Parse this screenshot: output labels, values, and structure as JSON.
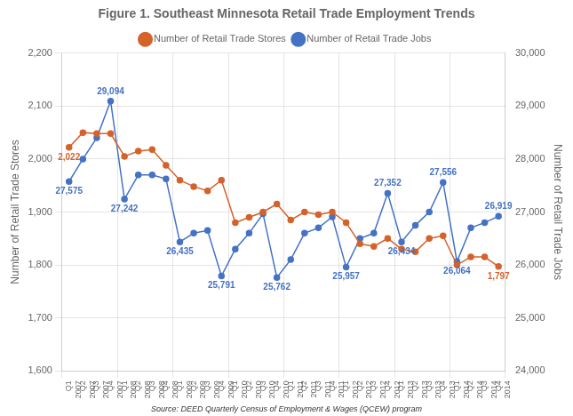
{
  "chart_data": {
    "type": "line",
    "title": "Figure 1. Southeast Minnesota Retail Trade Employment Trends",
    "y_label": "Number of Retail Trade Stores",
    "y2_label": "Number of Retail Trade Jobs",
    "categories": [
      "Q1\n2007",
      "Q2\n2007",
      "Q3\n2007",
      "Q4\n2007",
      "Q1\n2008",
      "Q2\n2008",
      "Q3\n2008",
      "Q4\n2008",
      "Q1\n2009",
      "Q2\n2009",
      "Q3\n2009",
      "Q4\n2009",
      "Q1\n2010",
      "Q2\n2010",
      "Q3\n2010",
      "Q4\n2010",
      "Q1\n2011",
      "Q2\n2011",
      "Q3\n2011",
      "Q4\n2011",
      "Q1\n2012",
      "Q2\n2012",
      "Q3\n2012",
      "Q4\n2012",
      "Q1\n2013",
      "Q2\n2013",
      "Q3\n2013",
      "Q4\n2013",
      "Q1\n2014",
      "Q2\n2014",
      "Q3\n2014",
      "Q4\n2014"
    ],
    "series": [
      {
        "name": "Number of Retail Trade Stores",
        "color": "#D4622A",
        "marker": "circle",
        "line_style": "solid",
        "values": [
          2022,
          2050,
          2048,
          2048,
          2005,
          2015,
          2018,
          1988,
          1960,
          1948,
          1940,
          1960,
          1880,
          1890,
          1900,
          1915,
          1885,
          1900,
          1895,
          1900,
          1880,
          1840,
          1835,
          1850,
          1830,
          1825,
          1850,
          1855,
          1800,
          1815,
          1815,
          1797
        ]
      },
      {
        "name": "Number of Retail Trade Jobs",
        "color": "#4472C4",
        "marker": "circle",
        "line_style": "solid",
        "axis": "y2",
        "values": [
          27575,
          28000,
          28400,
          29094,
          27242,
          27700,
          27700,
          27625,
          26435,
          26600,
          26650,
          25791,
          26300,
          26600,
          26967,
          25762,
          26100,
          26600,
          26700,
          26907,
          25957,
          26500,
          26600,
          27352,
          26434,
          26750,
          27000,
          27556,
          26064,
          26700,
          26800,
          26919
        ]
      }
    ],
    "ylim": [
      1600,
      2200
    ],
    "yticks": [
      {
        "value": 1600,
        "label": "1,600"
      },
      {
        "value": 1700,
        "label": "1,700"
      },
      {
        "value": 1800,
        "label": "1,800"
      },
      {
        "value": 1900,
        "label": "1,900"
      },
      {
        "value": 2000,
        "label": "2,000"
      },
      {
        "value": 2100,
        "label": "2,100"
      },
      {
        "value": 2200,
        "label": "2,200"
      }
    ],
    "y2lim": [
      24000,
      30000
    ],
    "y2ticks": [
      {
        "value": 24000,
        "label": "24,000"
      },
      {
        "value": 25000,
        "label": "25,000"
      },
      {
        "value": 26000,
        "label": "26,000"
      },
      {
        "value": 27000,
        "label": "27,000"
      },
      {
        "value": 28000,
        "label": "28,000"
      },
      {
        "value": 29000,
        "label": "29,000"
      },
      {
        "value": 30000,
        "label": "30,000"
      }
    ],
    "grid": true,
    "legend": "top",
    "annotations": [
      {
        "text": "2,022",
        "series": "Number of Retail Trade Stores",
        "x": "Q1\n2007",
        "y": 2022
      },
      {
        "text": "1,797",
        "series": "Number of Retail Trade Stores",
        "x": "Q4\n2014",
        "y": 1797
      },
      {
        "text": "27,575",
        "series": "Number of Retail Trade Jobs",
        "x": "Q1\n2007",
        "y": 27575
      },
      {
        "text": "29,094",
        "series": "Number of Retail Trade Jobs",
        "x": "Q4\n2007",
        "y": 29094
      },
      {
        "text": "27,242",
        "series": "Number of Retail Trade Jobs",
        "x": "Q1\n2008",
        "y": 27242
      },
      {
        "text": "26,435",
        "series": "Number of Retail Trade Jobs",
        "x": "Q1\n2009",
        "y": 26435
      },
      {
        "text": "25,791",
        "series": "Number of Retail Trade Jobs",
        "x": "Q4\n2009",
        "y": 25791
      },
      {
        "text": "25,762",
        "series": "Number of Retail Trade Jobs",
        "x": "Q4\n2010",
        "y": 25762
      },
      {
        "text": "25,957",
        "series": "Number of Retail Trade Jobs",
        "x": "Q1\n2012",
        "y": 25957
      },
      {
        "text": "27,352",
        "series": "Number of Retail Trade Jobs",
        "x": "Q4\n2012",
        "y": 27352
      },
      {
        "text": "26,434",
        "series": "Number of Retail Trade Jobs",
        "x": "Q1\n2013",
        "y": 26434
      },
      {
        "text": "27,556",
        "series": "Number of Retail Trade Jobs",
        "x": "Q4\n2013",
        "y": 27556
      },
      {
        "text": "26,064",
        "series": "Number of Retail Trade Jobs",
        "x": "Q1\n2014",
        "y": 26064
      },
      {
        "text": "26,919",
        "series": "Number of Retail Trade Jobs",
        "x": "Q4\n2014",
        "y": 26919
      },
      {
        "text": "Source: DEED Quarterly Census of Employment & Wages (QCEW) program"
      }
    ]
  }
}
